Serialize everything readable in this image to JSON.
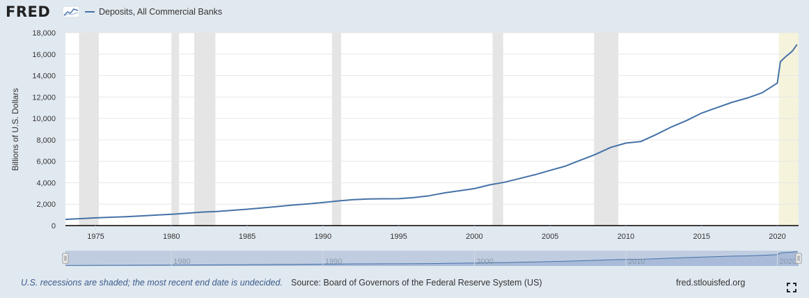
{
  "header": {
    "logo_text": "FRED",
    "logo_icon": "line-chart-icon",
    "legend_label": "Deposits, All Commercial Banks"
  },
  "colors": {
    "series": "#4572a7",
    "recession": "#e5e5e5",
    "undecided_recession": "#f5f3dc",
    "background": "#e1e9f0",
    "navigator": "#b7c5dd"
  },
  "chart_data": {
    "type": "line",
    "title": "",
    "xlabel": "",
    "ylabel": "Billions of U.S. Dollars",
    "xlim": [
      1973.0,
      2021.4
    ],
    "ylim": [
      0,
      18000
    ],
    "grid": true,
    "legend_placement": "top-left",
    "yticks": [
      0,
      2000,
      4000,
      6000,
      8000,
      10000,
      12000,
      14000,
      16000,
      18000
    ],
    "ytick_labels": [
      "0",
      "2,000",
      "4,000",
      "6,000",
      "8,000",
      "10,000",
      "12,000",
      "14,000",
      "16,000",
      "18,000"
    ],
    "xticks": [
      1975,
      1980,
      1985,
      1990,
      1995,
      2000,
      2005,
      2010,
      2015,
      2020
    ],
    "xtick_labels": [
      "1975",
      "1980",
      "1985",
      "1990",
      "1995",
      "2000",
      "2005",
      "2010",
      "2015",
      "2020"
    ],
    "recessions": [
      [
        1973.9,
        1975.2
      ],
      [
        1980.0,
        1980.5
      ],
      [
        1981.5,
        1982.9
      ],
      [
        1990.6,
        1991.2
      ],
      [
        2001.2,
        2001.9
      ],
      [
        2007.9,
        2009.5
      ],
      [
        2020.1,
        2021.4
      ]
    ],
    "series": [
      {
        "name": "Deposits, All Commercial Banks",
        "x": [
          1973.0,
          1974,
          1975,
          1976,
          1977,
          1978,
          1979,
          1980,
          1981,
          1982,
          1983,
          1984,
          1985,
          1986,
          1987,
          1988,
          1989,
          1990,
          1991,
          1992,
          1993,
          1994,
          1995,
          1996,
          1997,
          1998,
          1999,
          2000,
          2001,
          2002,
          2003,
          2004,
          2005,
          2006,
          2007,
          2008,
          2009,
          2010,
          2011,
          2012,
          2013,
          2014,
          2015,
          2016,
          2017,
          2018,
          2019,
          2020.0,
          2020.2,
          2020.5,
          2021.0,
          2021.3
        ],
        "y": [
          580,
          650,
          720,
          780,
          830,
          900,
          980,
          1050,
          1150,
          1260,
          1320,
          1420,
          1530,
          1650,
          1780,
          1920,
          2020,
          2150,
          2300,
          2420,
          2480,
          2500,
          2510,
          2620,
          2780,
          3050,
          3250,
          3450,
          3800,
          4050,
          4400,
          4750,
          5150,
          5550,
          6100,
          6650,
          7300,
          7700,
          7850,
          8500,
          9200,
          9800,
          10500,
          11000,
          11500,
          11900,
          12400,
          13300,
          15300,
          15700,
          16300,
          16900
        ]
      }
    ]
  },
  "navigator": {
    "tick_labels": [
      "1980",
      "1990",
      "2000",
      "2010",
      "2020"
    ]
  },
  "footer": {
    "note": "U.S. recessions are shaded; the most recent end date is undecided.",
    "source": "Source: Board of Governors of the Federal Reserve System (US)",
    "url": "fred.stlouisfed.org"
  }
}
